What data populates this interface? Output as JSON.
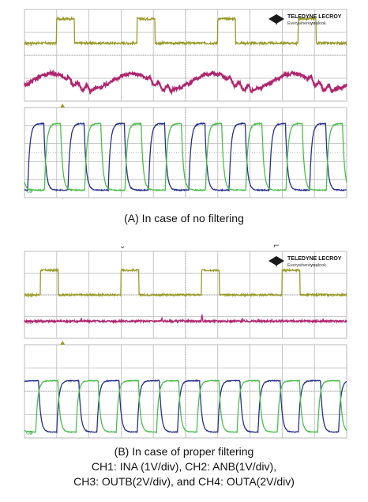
{
  "logo": {
    "brand": "TELEDYNE LECROY",
    "tagline_plain": "Everywhere",
    "tagline_bold": "you",
    "tagline_end": "look"
  },
  "captions": {
    "a": "(A) In case of no filtering",
    "b_line1": "(B) In case of proper filtering",
    "b_line2": "CH1: INA (1V/div), CH2: ANB(1V/div),",
    "b_line3": "CH3: OUTB(2V/div), and CH4: OUTA(2V/div)"
  },
  "colors": {
    "grid": "#b8b8b8",
    "ch1": "#9a9a2a",
    "ch2": "#b0246e",
    "ch3": "#26308c",
    "ch4": "#4cbf4c",
    "marker": "#2e6fd0"
  },
  "chart_data": [
    {
      "type": "line",
      "title": "(A) In case of no filtering",
      "xlabel": "",
      "ylabel": "",
      "grid": true,
      "x_divisions": 10,
      "panels": [
        {
          "name": "upper",
          "y_divisions": 4,
          "series": [
            {
              "channel": "C1",
              "color": "#9a9a2a",
              "shape": "pulse",
              "period": 2.5,
              "duty": 0.55,
              "phase": 1.0,
              "base": 3.2,
              "amp": 1.4,
              "noise": 0.06
            },
            {
              "channel": "C2",
              "color": "#b0246e",
              "shape": "ramp-ringing",
              "period": 2.5,
              "phase": 0.2,
              "base": 1.0,
              "amp": 0.45,
              "noise": 0.08
            }
          ]
        },
        {
          "name": "lower",
          "y_divisions": 5,
          "series": [
            {
              "channel": "C3",
              "color": "#26308c",
              "shape": "pulse-rc",
              "period": 1.25,
              "phase": 0.1,
              "duty": 0.4,
              "base": 0.3,
              "amp": 3.9,
              "noise": 0.03
            },
            {
              "channel": "C4",
              "color": "#4cbf4c",
              "shape": "pulse-rc",
              "period": 1.25,
              "phase": 0.62,
              "duty": 0.4,
              "base": 0.3,
              "amp": 3.9,
              "noise": 0.03
            }
          ]
        }
      ]
    },
    {
      "type": "line",
      "title": "(B) In case of proper filtering",
      "xlabel": "",
      "ylabel": "",
      "grid": true,
      "x_divisions": 10,
      "panels": [
        {
          "name": "upper",
          "y_divisions": 4,
          "series": [
            {
              "channel": "C1",
              "color": "#9a9a2a",
              "shape": "pulse",
              "period": 2.5,
              "duty": 0.55,
              "phase": 0.5,
              "base": 2.5,
              "amp": 1.5,
              "noise": 0.05
            },
            {
              "channel": "C2",
              "color": "#b0246e",
              "shape": "flat-spikes",
              "period": 1.25,
              "phase": 0.5,
              "base": 0.9,
              "amp": 0.15,
              "noise": 0.06
            }
          ]
        },
        {
          "name": "lower",
          "y_divisions": 4,
          "series": [
            {
              "channel": "C3",
              "color": "#26308c",
              "shape": "pulse-rc",
              "period": 1.25,
              "phase": 1.0,
              "duty": 0.55,
              "base": 0.2,
              "amp": 2.9,
              "noise": 0.02
            },
            {
              "channel": "C4",
              "color": "#4cbf4c",
              "shape": "pulse-rc",
              "period": 1.25,
              "phase": 0.35,
              "duty": 0.55,
              "base": 0.2,
              "amp": 2.9,
              "noise": 0.02
            }
          ]
        }
      ]
    }
  ]
}
